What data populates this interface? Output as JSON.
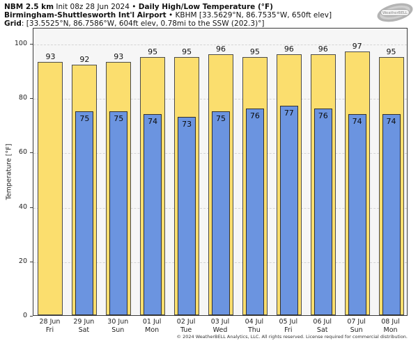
{
  "header": {
    "line1": {
      "model": "NBM 2.5 km",
      "init": " Init 08z 28 Jun 2024 • ",
      "product": "Daily High/Low Temperature (°F)"
    },
    "line2": {
      "station": "Birmingham-Shuttlesworth Int'l Airport",
      "details": " • KBHM [33.5629°N, 86.7535°W, 650ft elev]"
    },
    "line3": {
      "label": "Grid",
      "details": ": [33.5525°N, 86.7586°W, 604ft elev, 0.78mi to the SSW (202.3)°]"
    }
  },
  "logo": {
    "text": "WeatherBELL"
  },
  "chart_data": {
    "type": "bar",
    "title": "Daily High/Low Temperature (°F)",
    "ylabel": "Temperature [°F]",
    "ylim": [
      0,
      106
    ],
    "yticks": [
      0,
      20,
      40,
      60,
      80,
      100
    ],
    "grid": "horizontal-dashed",
    "legend": "none",
    "categories": [
      "28 Jun",
      "29 Jun",
      "30 Jun",
      "01 Jul",
      "02 Jul",
      "03 Jul",
      "04 Jul",
      "05 Jul",
      "06 Jul",
      "07 Jul",
      "08 Jul"
    ],
    "weekdays": [
      "Fri",
      "Sat",
      "Sun",
      "Mon",
      "Tue",
      "Wed",
      "Thu",
      "Fri",
      "Sat",
      "Sun",
      "Mon"
    ],
    "series": [
      {
        "name": "Daily High",
        "color": "#FBDE6E",
        "border": "#4a4a4a",
        "values": [
          93,
          92,
          93,
          95,
          95,
          96,
          95,
          96,
          96,
          97,
          95
        ]
      },
      {
        "name": "Daily Low",
        "color": "#6B94E0",
        "border": "#2f2f2f",
        "values": [
          null,
          75,
          75,
          74,
          73,
          75,
          76,
          77,
          76,
          74,
          74
        ]
      }
    ]
  },
  "footer": {
    "copyright": "© 2024 WeatherBELL Analytics, LLC. All rights reserved. License required for commercial distribution."
  }
}
